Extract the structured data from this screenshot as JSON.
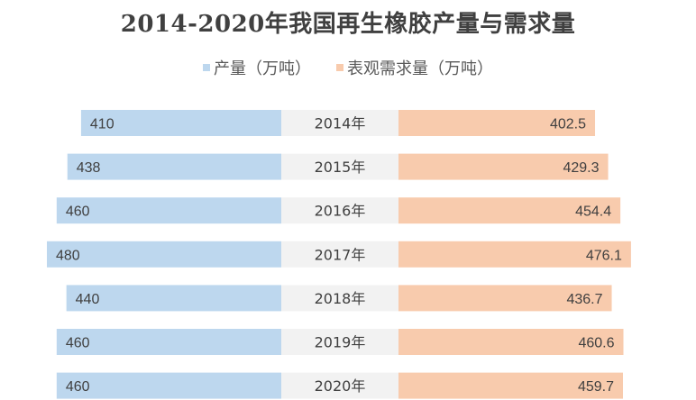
{
  "title": "2014-2020年我国再生橡胶产量与需求量",
  "legend": [
    {
      "label": "产量（万吨）",
      "color": "#bdd7ee"
    },
    {
      "label": "表观需求量（万吨）",
      "color": "#f8cbad"
    }
  ],
  "chart_data": {
    "type": "bar",
    "orientation": "horizontal-butterfly",
    "title": "2014-2020年我国再生橡胶产量与需求量",
    "categories": [
      "2014年",
      "2015年",
      "2016年",
      "2017年",
      "2018年",
      "2019年",
      "2020年"
    ],
    "series": [
      {
        "name": "产量（万吨）",
        "color": "#bdd7ee",
        "values": [
          410,
          438,
          460,
          480,
          440,
          460,
          460
        ],
        "labels": [
          "410",
          "438",
          "460",
          "480",
          "440",
          "460",
          "460"
        ]
      },
      {
        "name": "表观需求量（万吨）",
        "color": "#f8cbad",
        "values": [
          402.5,
          429.3,
          454.4,
          476.1,
          436.7,
          460.6,
          459.7
        ],
        "labels": [
          "402.5",
          "429.3",
          "454.4",
          "476.1",
          "436.7",
          "460.6",
          "459.7"
        ]
      }
    ],
    "category_band_color": "#f2f2f2",
    "legend_position": "top",
    "grid": false
  }
}
